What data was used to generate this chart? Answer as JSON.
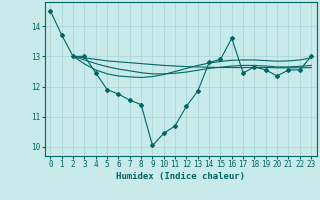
{
  "xlabel": "Humidex (Indice chaleur)",
  "background_color": "#c8eaea",
  "grid_color": "#b0d8d8",
  "line_color": "#006666",
  "xlim": [
    -0.5,
    23.5
  ],
  "ylim": [
    9.7,
    14.8
  ],
  "yticks": [
    10,
    11,
    12,
    13,
    14
  ],
  "xticks": [
    0,
    1,
    2,
    3,
    4,
    5,
    6,
    7,
    8,
    9,
    10,
    11,
    12,
    13,
    14,
    15,
    16,
    17,
    18,
    19,
    20,
    21,
    22,
    23
  ],
  "series": [
    {
      "x": [
        0,
        1,
        2,
        3,
        4,
        5,
        6,
        7,
        8,
        9,
        10,
        11,
        12,
        13,
        14,
        15,
        16,
        17,
        18,
        19,
        20,
        21,
        22,
        23
      ],
      "y": [
        14.5,
        13.7,
        13.0,
        13.0,
        12.45,
        11.9,
        11.75,
        11.55,
        11.4,
        10.05,
        10.45,
        10.7,
        11.35,
        11.85,
        12.8,
        12.9,
        13.6,
        12.45,
        12.65,
        12.55,
        12.35,
        12.55,
        12.55,
        13.0
      ],
      "with_markers": true,
      "linewidth": 0.8
    },
    {
      "x": [
        2,
        3,
        4,
        5,
        6,
        7,
        8,
        9,
        10,
        11,
        12,
        13,
        14,
        15,
        16,
        17,
        18,
        19,
        20,
        21,
        22,
        23
      ],
      "y": [
        13.0,
        12.95,
        12.9,
        12.85,
        12.82,
        12.79,
        12.76,
        12.73,
        12.7,
        12.68,
        12.66,
        12.65,
        12.64,
        12.63,
        12.63,
        12.63,
        12.63,
        12.63,
        12.62,
        12.62,
        12.62,
        12.63
      ],
      "with_markers": false,
      "linewidth": 0.8
    },
    {
      "x": [
        2,
        3,
        4,
        5,
        6,
        7,
        8,
        9,
        10,
        11,
        12,
        13,
        14,
        15,
        16,
        17,
        18,
        19,
        20,
        21,
        22,
        23
      ],
      "y": [
        13.0,
        12.88,
        12.76,
        12.66,
        12.58,
        12.52,
        12.46,
        12.42,
        12.42,
        12.44,
        12.48,
        12.54,
        12.6,
        12.64,
        12.68,
        12.7,
        12.7,
        12.68,
        12.65,
        12.65,
        12.67,
        12.7
      ],
      "with_markers": false,
      "linewidth": 0.8
    },
    {
      "x": [
        2,
        3,
        4,
        5,
        6,
        7,
        8,
        9,
        10,
        11,
        12,
        13,
        14,
        15,
        16,
        17,
        18,
        19,
        20,
        21,
        22,
        23
      ],
      "y": [
        13.0,
        12.75,
        12.55,
        12.42,
        12.35,
        12.32,
        12.3,
        12.33,
        12.4,
        12.5,
        12.6,
        12.7,
        12.78,
        12.83,
        12.87,
        12.88,
        12.88,
        12.86,
        12.84,
        12.85,
        12.88,
        12.95
      ],
      "with_markers": false,
      "linewidth": 0.8
    }
  ]
}
